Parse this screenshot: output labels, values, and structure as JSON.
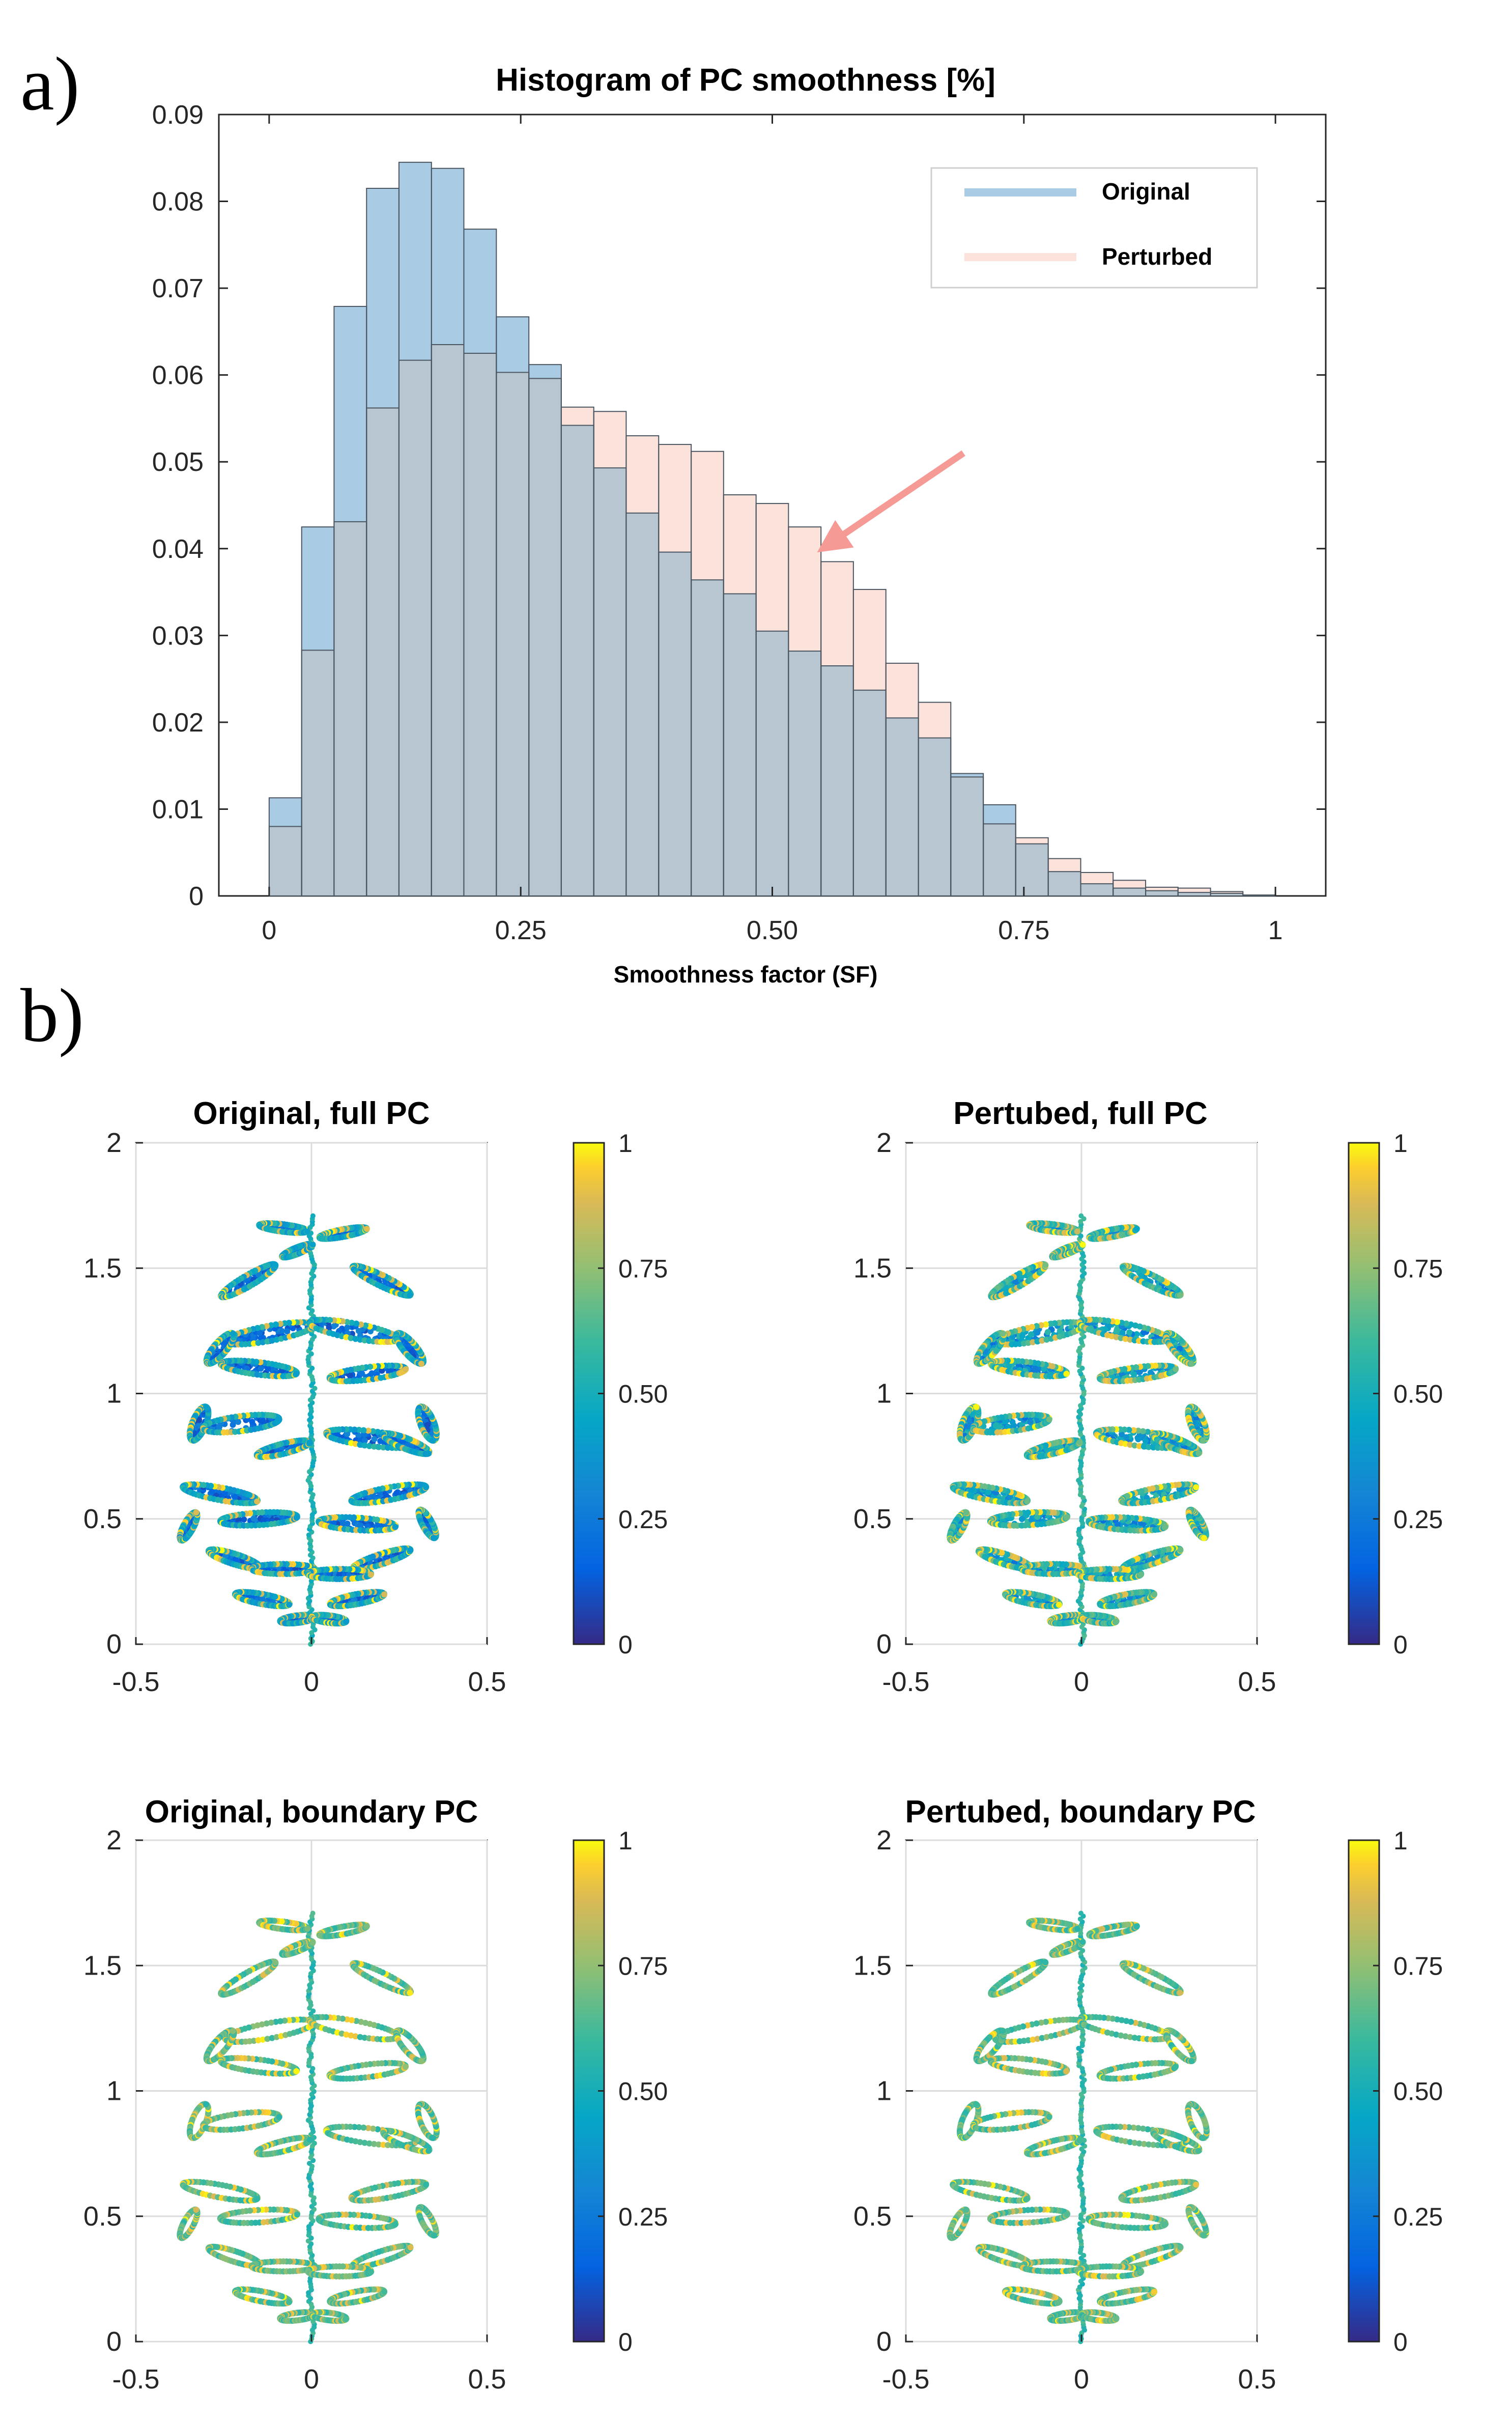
{
  "panel_labels": {
    "a": "a)",
    "b": "b)"
  },
  "colors": {
    "original": "#a9cbe3",
    "perturbed": "#fbe3dc",
    "overlap": "#b7c6d1",
    "arrow": "#f59a95",
    "axis": "#262626",
    "grid": "#dcdcdc"
  },
  "chart_data": [
    {
      "type": "bar",
      "title": "Histogram of PC smoothness [%]",
      "xlabel": "Smoothness factor (SF)",
      "ylabel": "",
      "xlim": [
        -0.05,
        1.05
      ],
      "ylim": [
        0,
        0.09
      ],
      "xticks": [
        0,
        0.25,
        0.5,
        0.75,
        1
      ],
      "xtick_labels": [
        "0",
        "0.25",
        "0.50",
        "0.75",
        "1"
      ],
      "yticks": [
        0,
        0.01,
        0.02,
        0.03,
        0.04,
        0.05,
        0.06,
        0.07,
        0.08,
        0.09
      ],
      "ytick_labels": [
        "0",
        "0.01",
        "0.02",
        "0.03",
        "0.04",
        "0.05",
        "0.06",
        "0.07",
        "0.08",
        "0.09"
      ],
      "grid": false,
      "legend_position": "top-right",
      "bin_edges": [
        0,
        0.0323,
        0.0645,
        0.0968,
        0.129,
        0.1613,
        0.1935,
        0.2258,
        0.2581,
        0.2903,
        0.3226,
        0.3548,
        0.3871,
        0.4194,
        0.4516,
        0.4839,
        0.5161,
        0.5484,
        0.5806,
        0.6129,
        0.6452,
        0.6774,
        0.7097,
        0.7419,
        0.7742,
        0.8065,
        0.8387,
        0.871,
        0.9032,
        0.9355,
        0.9677,
        1.0
      ],
      "series": [
        {
          "name": "Original",
          "values": [
            0.0113,
            0.0425,
            0.0679,
            0.0815,
            0.0845,
            0.0838,
            0.0768,
            0.0667,
            0.0612,
            0.0542,
            0.0493,
            0.0441,
            0.0396,
            0.0364,
            0.0348,
            0.0305,
            0.0282,
            0.0265,
            0.0237,
            0.0205,
            0.0182,
            0.0141,
            0.0105,
            0.006,
            0.0028,
            0.0014,
            0.0009,
            0.0006,
            0.0004,
            0.0003,
            0.0001
          ]
        },
        {
          "name": "Perturbed",
          "values": [
            0.008,
            0.0283,
            0.0431,
            0.0562,
            0.0617,
            0.0635,
            0.0625,
            0.0603,
            0.0596,
            0.0563,
            0.0558,
            0.053,
            0.052,
            0.0512,
            0.0462,
            0.0452,
            0.0425,
            0.0385,
            0.0353,
            0.0268,
            0.0223,
            0.0137,
            0.0083,
            0.0067,
            0.0043,
            0.0027,
            0.0018,
            0.001,
            0.0009,
            0.0005,
            0.0001
          ]
        }
      ],
      "annotations": [
        {
          "type": "arrow",
          "from": [
            0.69,
            0.051
          ],
          "to": [
            0.55,
            0.04
          ]
        }
      ]
    },
    {
      "type": "scatter",
      "title": "Original, full PC",
      "xlim": [
        -0.5,
        0.5
      ],
      "ylim": [
        0,
        2
      ],
      "xticks": [
        -0.5,
        0,
        0.5
      ],
      "xtick_labels": [
        "-0.5",
        "0",
        "0.5"
      ],
      "yticks": [
        0,
        0.5,
        1,
        1.5,
        2
      ],
      "ytick_labels": [
        "0",
        "0.5",
        "1",
        "1.5",
        "2"
      ],
      "grid": true,
      "colorbar": {
        "range": [
          0,
          1
        ],
        "ticks": [
          0,
          0.25,
          0.5,
          0.75,
          1
        ],
        "tick_labels": [
          "0",
          "0.25",
          "0.50",
          "0.75",
          "1"
        ],
        "colormap": "parula"
      },
      "color_profile": "blue"
    },
    {
      "type": "scatter",
      "title": "Pertubed, full PC",
      "xlim": [
        -0.5,
        0.5
      ],
      "ylim": [
        0,
        2
      ],
      "xticks": [
        -0.5,
        0,
        0.5
      ],
      "xtick_labels": [
        "-0.5",
        "0",
        "0.5"
      ],
      "yticks": [
        0,
        0.5,
        1,
        1.5,
        2
      ],
      "ytick_labels": [
        "0",
        "0.5",
        "1",
        "1.5",
        "2"
      ],
      "grid": true,
      "colorbar": {
        "range": [
          0,
          1
        ],
        "ticks": [
          0,
          0.25,
          0.5,
          0.75,
          1
        ],
        "tick_labels": [
          "0",
          "0.25",
          "0.50",
          "0.75",
          "1"
        ],
        "colormap": "parula"
      },
      "color_profile": "mixed"
    },
    {
      "type": "scatter",
      "title": "Original, boundary PC",
      "xlim": [
        -0.5,
        0.5
      ],
      "ylim": [
        0,
        2
      ],
      "xticks": [
        -0.5,
        0,
        0.5
      ],
      "xtick_labels": [
        "-0.5",
        "0",
        "0.5"
      ],
      "yticks": [
        0,
        0.5,
        1,
        1.5,
        2
      ],
      "ytick_labels": [
        "0",
        "0.5",
        "1",
        "1.5",
        "2"
      ],
      "grid": true,
      "colorbar": {
        "range": [
          0,
          1
        ],
        "ticks": [
          0,
          0.25,
          0.5,
          0.75,
          1
        ],
        "tick_labels": [
          "0",
          "0.25",
          "0.50",
          "0.75",
          "1"
        ],
        "colormap": "parula"
      },
      "color_profile": "green"
    },
    {
      "type": "scatter",
      "title": "Pertubed, boundary PC",
      "xlim": [
        -0.5,
        0.5
      ],
      "ylim": [
        0,
        2
      ],
      "xticks": [
        -0.5,
        0,
        0.5
      ],
      "xtick_labels": [
        "-0.5",
        "0",
        "0.5"
      ],
      "yticks": [
        0,
        0.5,
        1,
        1.5,
        2
      ],
      "ytick_labels": [
        "0",
        "0.5",
        "1",
        "1.5",
        "2"
      ],
      "grid": true,
      "colorbar": {
        "range": [
          0,
          1
        ],
        "ticks": [
          0,
          0.25,
          0.5,
          0.75,
          1
        ],
        "tick_labels": [
          "0",
          "0.25",
          "0.50",
          "0.75",
          "1"
        ],
        "colormap": "parula"
      },
      "color_profile": "green"
    }
  ]
}
